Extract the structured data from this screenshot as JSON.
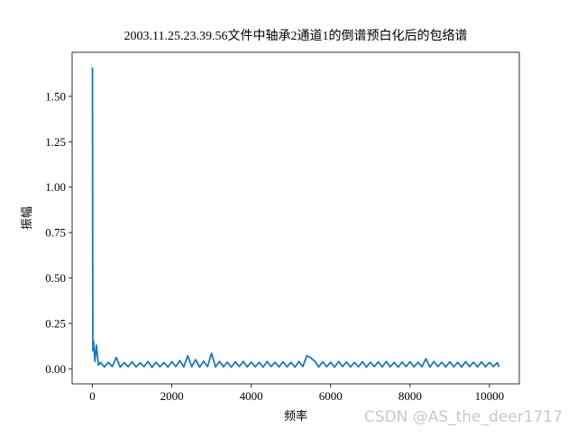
{
  "chart_data": {
    "type": "line",
    "title": "2003.11.25.23.39.56文件中轴承2通道1的倒谱预白化后的包络谱",
    "x_label": "频率",
    "y_label": "振幅",
    "watermark": "CSDN @AS_the_deer1717",
    "color": "#1f77b4",
    "grid": false,
    "xlim": [
      -512,
      10752
    ],
    "ylim": [
      -0.083,
      1.743
    ],
    "xticks": [
      0,
      2000,
      4000,
      6000,
      8000,
      10000
    ],
    "yticks": [
      {
        "value": 0,
        "label": "0.00"
      },
      {
        "value": 0.25,
        "label": "0.25"
      },
      {
        "value": 0.5,
        "label": "0.50"
      },
      {
        "value": 0.75,
        "label": "0.75"
      },
      {
        "value": 1,
        "label": "1.00"
      },
      {
        "value": 1.25,
        "label": "1.25"
      },
      {
        "value": 1.5,
        "label": "1.50"
      }
    ],
    "x": [
      0,
      10,
      30,
      60,
      100,
      150,
      200,
      300,
      400,
      500,
      600,
      700,
      800,
      900,
      1000,
      1100,
      1200,
      1300,
      1400,
      1500,
      1600,
      1700,
      1800,
      1900,
      2000,
      2100,
      2200,
      2300,
      2400,
      2500,
      2600,
      2700,
      2800,
      2900,
      3000,
      3100,
      3200,
      3300,
      3400,
      3500,
      3600,
      3700,
      3800,
      3900,
      4000,
      4100,
      4200,
      4300,
      4400,
      4500,
      4600,
      4700,
      4800,
      4900,
      5000,
      5100,
      5200,
      5300,
      5400,
      5500,
      5600,
      5700,
      5800,
      5900,
      6000,
      6100,
      6200,
      6300,
      6400,
      6500,
      6600,
      6700,
      6800,
      6900,
      7000,
      7100,
      7200,
      7300,
      7400,
      7500,
      7600,
      7700,
      7800,
      7900,
      8000,
      8100,
      8200,
      8300,
      8400,
      8500,
      8600,
      8700,
      8800,
      8900,
      9000,
      9100,
      9200,
      9300,
      9400,
      9500,
      9600,
      9700,
      9800,
      9900,
      10000,
      10100,
      10200,
      10240
    ],
    "values": [
      1.66,
      0.1,
      0.15,
      0.04,
      0.13,
      0.02,
      0.035,
      0.01,
      0.035,
      0.012,
      0.062,
      0.009,
      0.034,
      0.011,
      0.038,
      0.01,
      0.033,
      0.012,
      0.04,
      0.008,
      0.036,
      0.011,
      0.034,
      0.009,
      0.039,
      0.012,
      0.045,
      0.01,
      0.072,
      0.011,
      0.05,
      0.009,
      0.042,
      0.012,
      0.085,
      0.01,
      0.04,
      0.011,
      0.036,
      0.009,
      0.038,
      0.012,
      0.04,
      0.01,
      0.037,
      0.011,
      0.035,
      0.009,
      0.04,
      0.012,
      0.036,
      0.01,
      0.038,
      0.011,
      0.035,
      0.009,
      0.04,
      0.012,
      0.072,
      0.06,
      0.042,
      0.01,
      0.038,
      0.011,
      0.036,
      0.009,
      0.04,
      0.012,
      0.037,
      0.01,
      0.035,
      0.011,
      0.039,
      0.009,
      0.036,
      0.012,
      0.038,
      0.01,
      0.04,
      0.011,
      0.035,
      0.009,
      0.037,
      0.012,
      0.039,
      0.01,
      0.036,
      0.011,
      0.055,
      0.009,
      0.04,
      0.012,
      0.036,
      0.01,
      0.038,
      0.011,
      0.035,
      0.009,
      0.039,
      0.012,
      0.036,
      0.01,
      0.038,
      0.011,
      0.035,
      0.012,
      0.034,
      0.01
    ]
  }
}
